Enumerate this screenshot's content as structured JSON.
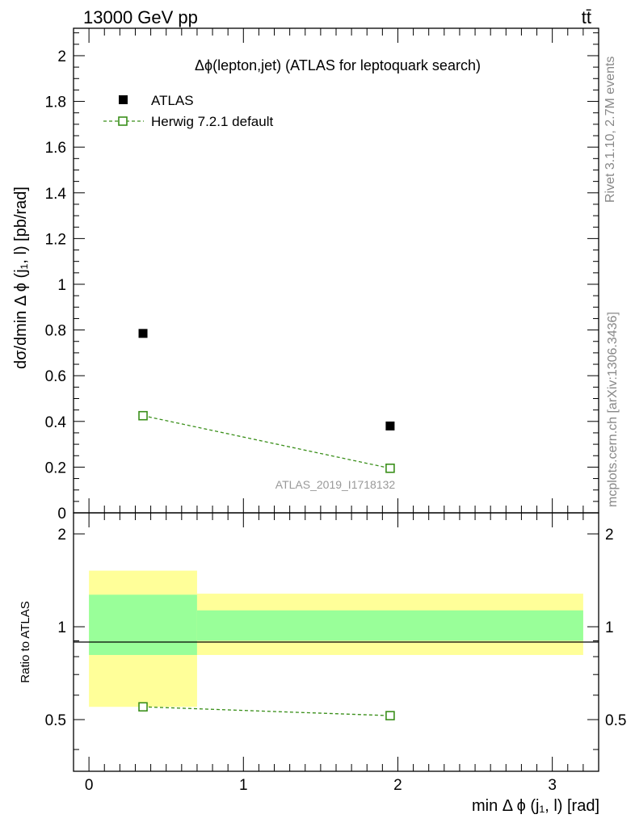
{
  "header": {
    "energy": "13000 GeV pp",
    "process": "tt̄"
  },
  "side_labels": {
    "rivet": "Rivet 3.1.10,  2.7M events",
    "mcplots": "mcplots.cern.ch [arXiv:1306.3436]"
  },
  "colors": {
    "data": "#000000",
    "mc": "#3a8f1a",
    "band_inner": "#99ff99",
    "band_outer": "#ffff99"
  },
  "chart_data": [
    {
      "type": "scatter",
      "title": "Δϕ(lepton,jet) (ATLAS for leptoquark search)",
      "analysis_id": "ATLAS_2019_I1718132",
      "ylabel": "dσ/dmin Δ ϕ (j₁, l) [pb/rad]",
      "xlim": [
        -0.1,
        3.3
      ],
      "ylim": [
        0,
        2.12
      ],
      "yticks": [
        "0",
        "0.2",
        "0.4",
        "0.6",
        "0.8",
        "1",
        "1.2",
        "1.4",
        "1.6",
        "1.8",
        "2"
      ],
      "series": [
        {
          "name": "ATLAS",
          "marker": "filled-square",
          "x": [
            0.35,
            1.95
          ],
          "y": [
            0.785,
            0.38
          ]
        },
        {
          "name": "Herwig 7.2.1 default",
          "marker": "open-square",
          "line": "dashed",
          "x": [
            0.35,
            1.95
          ],
          "y": [
            0.425,
            0.195
          ]
        }
      ]
    },
    {
      "type": "line",
      "ylabel": "Ratio to ATLAS",
      "xlabel": "min Δ ϕ (j₁, l) [rad]",
      "xlim": [
        -0.1,
        3.3
      ],
      "ylim": [
        0.34,
        2.34
      ],
      "xticks": [
        "0",
        "1",
        "2",
        "3"
      ],
      "yticks": [
        "0.5",
        "1",
        "2"
      ],
      "bands": [
        {
          "x": [
            0,
            0.7
          ],
          "inner": [
            0.81,
            1.27
          ],
          "outer": [
            0.55,
            1.52
          ]
        },
        {
          "x": [
            0.7,
            3.2
          ],
          "inner": [
            0.9,
            1.13
          ],
          "outer": [
            0.81,
            1.28
          ]
        }
      ],
      "series": [
        {
          "name": "Herwig 7.2.1 default",
          "x": [
            0.35,
            1.95
          ],
          "y": [
            0.55,
            0.515
          ]
        }
      ]
    }
  ]
}
